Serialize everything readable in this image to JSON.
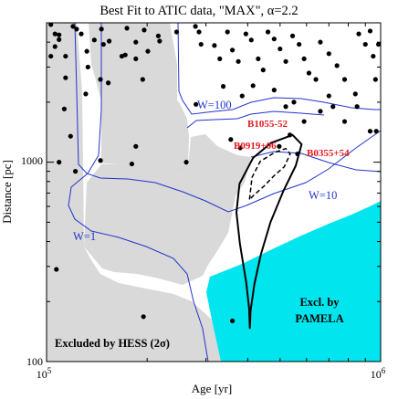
{
  "chart_data": {
    "type": "scatter",
    "title_parts": [
      "Best Fit to ATIC data, \"MAX\", ",
      "α",
      "=2.2"
    ],
    "xlabel": "Age [yr]",
    "ylabel": "Distance [pc]",
    "x_scale": "log",
    "y_scale": "log",
    "xlim": [
      100000,
      1000000
    ],
    "ylim": [
      100,
      5000
    ],
    "x_ticks": [
      {
        "value": 100000,
        "base": "10",
        "exp": "5"
      },
      {
        "value": 1000000,
        "base": "10",
        "exp": "6"
      }
    ],
    "y_ticks": [
      {
        "value": 100,
        "label": "100"
      },
      {
        "value": 1000,
        "label": "1000"
      }
    ],
    "colors": {
      "hess_excluded": "#d9d9d9",
      "pamela_excluded": "#00e5ee",
      "contours": "#2233cc",
      "pulsar_labels": "#e8141b",
      "points": "#000000"
    },
    "regions": [
      {
        "name": "hess",
        "label_parts": [
          "Excluded by HESS (2",
          "σ",
          ")"
        ]
      },
      {
        "name": "pamela",
        "label_lines": [
          "Excl. by",
          "PAMELA"
        ]
      }
    ],
    "contour_labels": [
      {
        "text": "W=100",
        "at": [
          200000,
          1400
        ]
      },
      {
        "text": "W=10",
        "at": [
          560000,
          700
        ]
      },
      {
        "text": "W=1",
        "at": [
          113000,
          480
        ]
      }
    ],
    "fit_region": {
      "solid_1sigma": [
        [
          406000,
          146
        ],
        [
          404000,
          185
        ],
        [
          396000,
          248
        ],
        [
          379000,
          390
        ],
        [
          370000,
          560
        ],
        [
          378000,
          780
        ],
        [
          415000,
          1050
        ],
        [
          470000,
          1250
        ],
        [
          545000,
          1370
        ],
        [
          580000,
          1230
        ],
        [
          557000,
          960
        ],
        [
          512000,
          720
        ],
        [
          468000,
          500
        ],
        [
          438000,
          345
        ],
        [
          419000,
          245
        ],
        [
          408000,
          180
        ],
        [
          406000,
          146
        ]
      ],
      "dashed_68": [
        [
          405000,
          650
        ],
        [
          412000,
          840
        ],
        [
          436000,
          1010
        ],
        [
          482000,
          1120
        ],
        [
          520000,
          1170
        ],
        [
          536000,
          1100
        ],
        [
          515000,
          950
        ],
        [
          478000,
          850
        ],
        [
          448000,
          760
        ],
        [
          420000,
          690
        ],
        [
          405000,
          650
        ]
      ]
    },
    "named_pulsars": [
      {
        "name": "B1055-52",
        "age": 535000,
        "distance": 1370
      },
      {
        "name": "B0919+06",
        "age": 497000,
        "distance": 1200
      },
      {
        "name": "B0355+54",
        "age": 564000,
        "distance": 1100
      }
    ],
    "points": [
      [
        103000,
        4900
      ],
      [
        106000,
        4400
      ],
      [
        109000,
        4350
      ],
      [
        120000,
        4800
      ],
      [
        127000,
        4400
      ],
      [
        139000,
        4100
      ],
      [
        146000,
        4650
      ],
      [
        154000,
        4050
      ],
      [
        168000,
        3400
      ],
      [
        172000,
        3450
      ],
      [
        106000,
        3800
      ],
      [
        109000,
        4120
      ],
      [
        148000,
        3900
      ],
      [
        174000,
        4700
      ],
      [
        132000,
        3600
      ],
      [
        185000,
        4000
      ],
      [
        196000,
        4600
      ],
      [
        201000,
        3600
      ],
      [
        216000,
        4300
      ],
      [
        218000,
        4050
      ],
      [
        245000,
        4500
      ],
      [
        103000,
        3400
      ],
      [
        114000,
        3400
      ],
      [
        123000,
        4650
      ],
      [
        133000,
        3000
      ],
      [
        145000,
        2600
      ],
      [
        185000,
        3300
      ],
      [
        114000,
        2650
      ],
      [
        153000,
        2500
      ],
      [
        194000,
        2600
      ],
      [
        131000,
        2200
      ],
      [
        113000,
        1850
      ],
      [
        185000,
        1200
      ],
      [
        145000,
        1020
      ],
      [
        180000,
        980
      ],
      [
        122000,
        900
      ],
      [
        109000,
        1000
      ],
      [
        118000,
        1350
      ],
      [
        262000,
        1000
      ],
      [
        107000,
        290
      ],
      [
        195000,
        168
      ],
      [
        279000,
        4800
      ],
      [
        286000,
        4500
      ],
      [
        290000,
        3900
      ],
      [
        318000,
        3850
      ],
      [
        330000,
        3300
      ],
      [
        348000,
        4500
      ],
      [
        360000,
        3650
      ],
      [
        375000,
        3200
      ],
      [
        395000,
        4400
      ],
      [
        410000,
        4100
      ],
      [
        430000,
        3300
      ],
      [
        445000,
        2900
      ],
      [
        460000,
        4500
      ],
      [
        480000,
        4150
      ],
      [
        500000,
        3700
      ],
      [
        520000,
        3200
      ],
      [
        545000,
        4300
      ],
      [
        570000,
        3900
      ],
      [
        590000,
        3300
      ],
      [
        610000,
        2800
      ],
      [
        660000,
        4000
      ],
      [
        700000,
        3500
      ],
      [
        740000,
        3050
      ],
      [
        780000,
        2600
      ],
      [
        840000,
        2200
      ],
      [
        860000,
        4400
      ],
      [
        900000,
        3900
      ],
      [
        930000,
        4550
      ],
      [
        950000,
        3400
      ],
      [
        965000,
        2600
      ],
      [
        985000,
        3900
      ],
      [
        338000,
        2400
      ],
      [
        385000,
        2150
      ],
      [
        415000,
        2420
      ],
      [
        480000,
        2300
      ],
      [
        550000,
        2000
      ],
      [
        640000,
        2600
      ],
      [
        700000,
        2150
      ],
      [
        660000,
        1800
      ],
      [
        720000,
        1900
      ],
      [
        780000,
        1600
      ],
      [
        850000,
        1900
      ],
      [
        520000,
        1900
      ],
      [
        930000,
        1430
      ],
      [
        970000,
        1430
      ],
      [
        356000,
        1300
      ],
      [
        590000,
        1600
      ],
      [
        380000,
        1180
      ],
      [
        360000,
        160
      ],
      [
        280000,
        1950
      ]
    ]
  }
}
